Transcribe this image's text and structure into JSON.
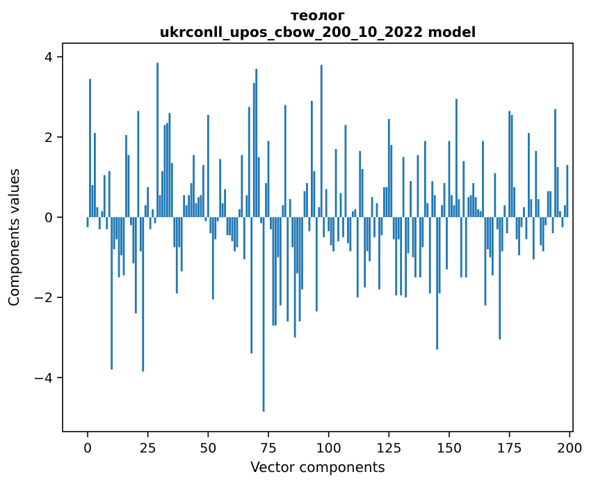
{
  "figure": {
    "title_line1": "теолог",
    "title_line2": "ukrconll_upos_cbow_200_10_2022 model",
    "xlabel": "Vector components",
    "ylabel": "Components values",
    "background_color": "#ffffff"
  },
  "chart_data": {
    "type": "bar",
    "title": "теолог — ukrconll_upos_cbow_200_10_2022 model",
    "xlabel": "Vector components",
    "ylabel": "Components values",
    "bar_color": "#1f77b4",
    "axis_color": "#000000",
    "grid": false,
    "legend": null,
    "n_components": 200,
    "x_ticks": [
      0,
      25,
      50,
      75,
      100,
      125,
      150,
      175,
      200
    ],
    "y_ticks": [
      -4,
      -2,
      0,
      2,
      4
    ],
    "xlim": [
      -10.4,
      201.3
    ],
    "ylim": [
      -5.35,
      4.34
    ],
    "values": [
      -0.25,
      3.45,
      0.8,
      2.1,
      0.25,
      -0.3,
      0.15,
      1.05,
      -0.3,
      1.15,
      -3.8,
      -0.8,
      -0.55,
      -1.5,
      -0.95,
      -1.45,
      2.05,
      1.55,
      -0.2,
      -1.15,
      -2.4,
      2.65,
      -0.85,
      -3.85,
      0.3,
      0.75,
      -0.3,
      0.2,
      -0.15,
      3.85,
      0.55,
      1.15,
      2.3,
      2.35,
      2.6,
      1.35,
      -0.75,
      -1.9,
      -0.75,
      -1.35,
      0.55,
      0.3,
      0.55,
      0.85,
      1.55,
      0.35,
      0.5,
      0.55,
      1.3,
      -0.1,
      2.55,
      -0.4,
      -2.05,
      -0.55,
      -0.1,
      1.45,
      0.35,
      0.7,
      -0.45,
      -0.45,
      -0.6,
      -0.85,
      -0.75,
      0.2,
      1.55,
      -1.05,
      0.55,
      2.75,
      -3.4,
      3.35,
      3.7,
      1.5,
      -0.15,
      -4.85,
      0.85,
      1.9,
      -0.3,
      -2.7,
      -2.7,
      -1.0,
      -2.2,
      0.3,
      2.8,
      -2.6,
      0.45,
      -0.75,
      -3.0,
      -1.4,
      -2.6,
      -1.8,
      0.65,
      0.85,
      -0.35,
      2.9,
      1.15,
      -2.35,
      0.25,
      3.8,
      -0.5,
      0.7,
      -0.35,
      -0.7,
      -0.85,
      1.7,
      -0.6,
      0.6,
      -0.5,
      2.3,
      -0.65,
      -0.85,
      0.15,
      0.2,
      -2.0,
      1.65,
      1.2,
      -1.75,
      -0.85,
      -1.1,
      0.5,
      -0.5,
      0.35,
      -1.8,
      -0.45,
      0.75,
      0.75,
      2.45,
      1.8,
      -0.55,
      -1.95,
      -0.55,
      -1.95,
      1.5,
      -2.0,
      -0.9,
      0.9,
      -1.0,
      -1.5,
      1.55,
      -1.5,
      -0.75,
      1.9,
      0.35,
      -1.9,
      0.9,
      0.55,
      -3.3,
      -1.9,
      0.3,
      0.85,
      -1.3,
      1.9,
      0.55,
      0.3,
      2.95,
      0.45,
      -1.5,
      1.4,
      -1.5,
      0.5,
      0.55,
      0.85,
      0.5,
      0.2,
      0.15,
      1.9,
      -2.2,
      -0.8,
      -1.0,
      -1.45,
      1.1,
      -0.3,
      -3.05,
      -0.85,
      0.3,
      -0.4,
      2.65,
      2.55,
      0.75,
      -0.55,
      -0.95,
      -0.25,
      0.25,
      -0.55,
      2.1,
      0.45,
      -1.05,
      1.65,
      0.45,
      -0.7,
      -0.85,
      -0.2,
      0.65,
      0.65,
      -0.4,
      2.7,
      1.25,
      0.15,
      -0.25,
      0.3,
      1.3
    ]
  }
}
